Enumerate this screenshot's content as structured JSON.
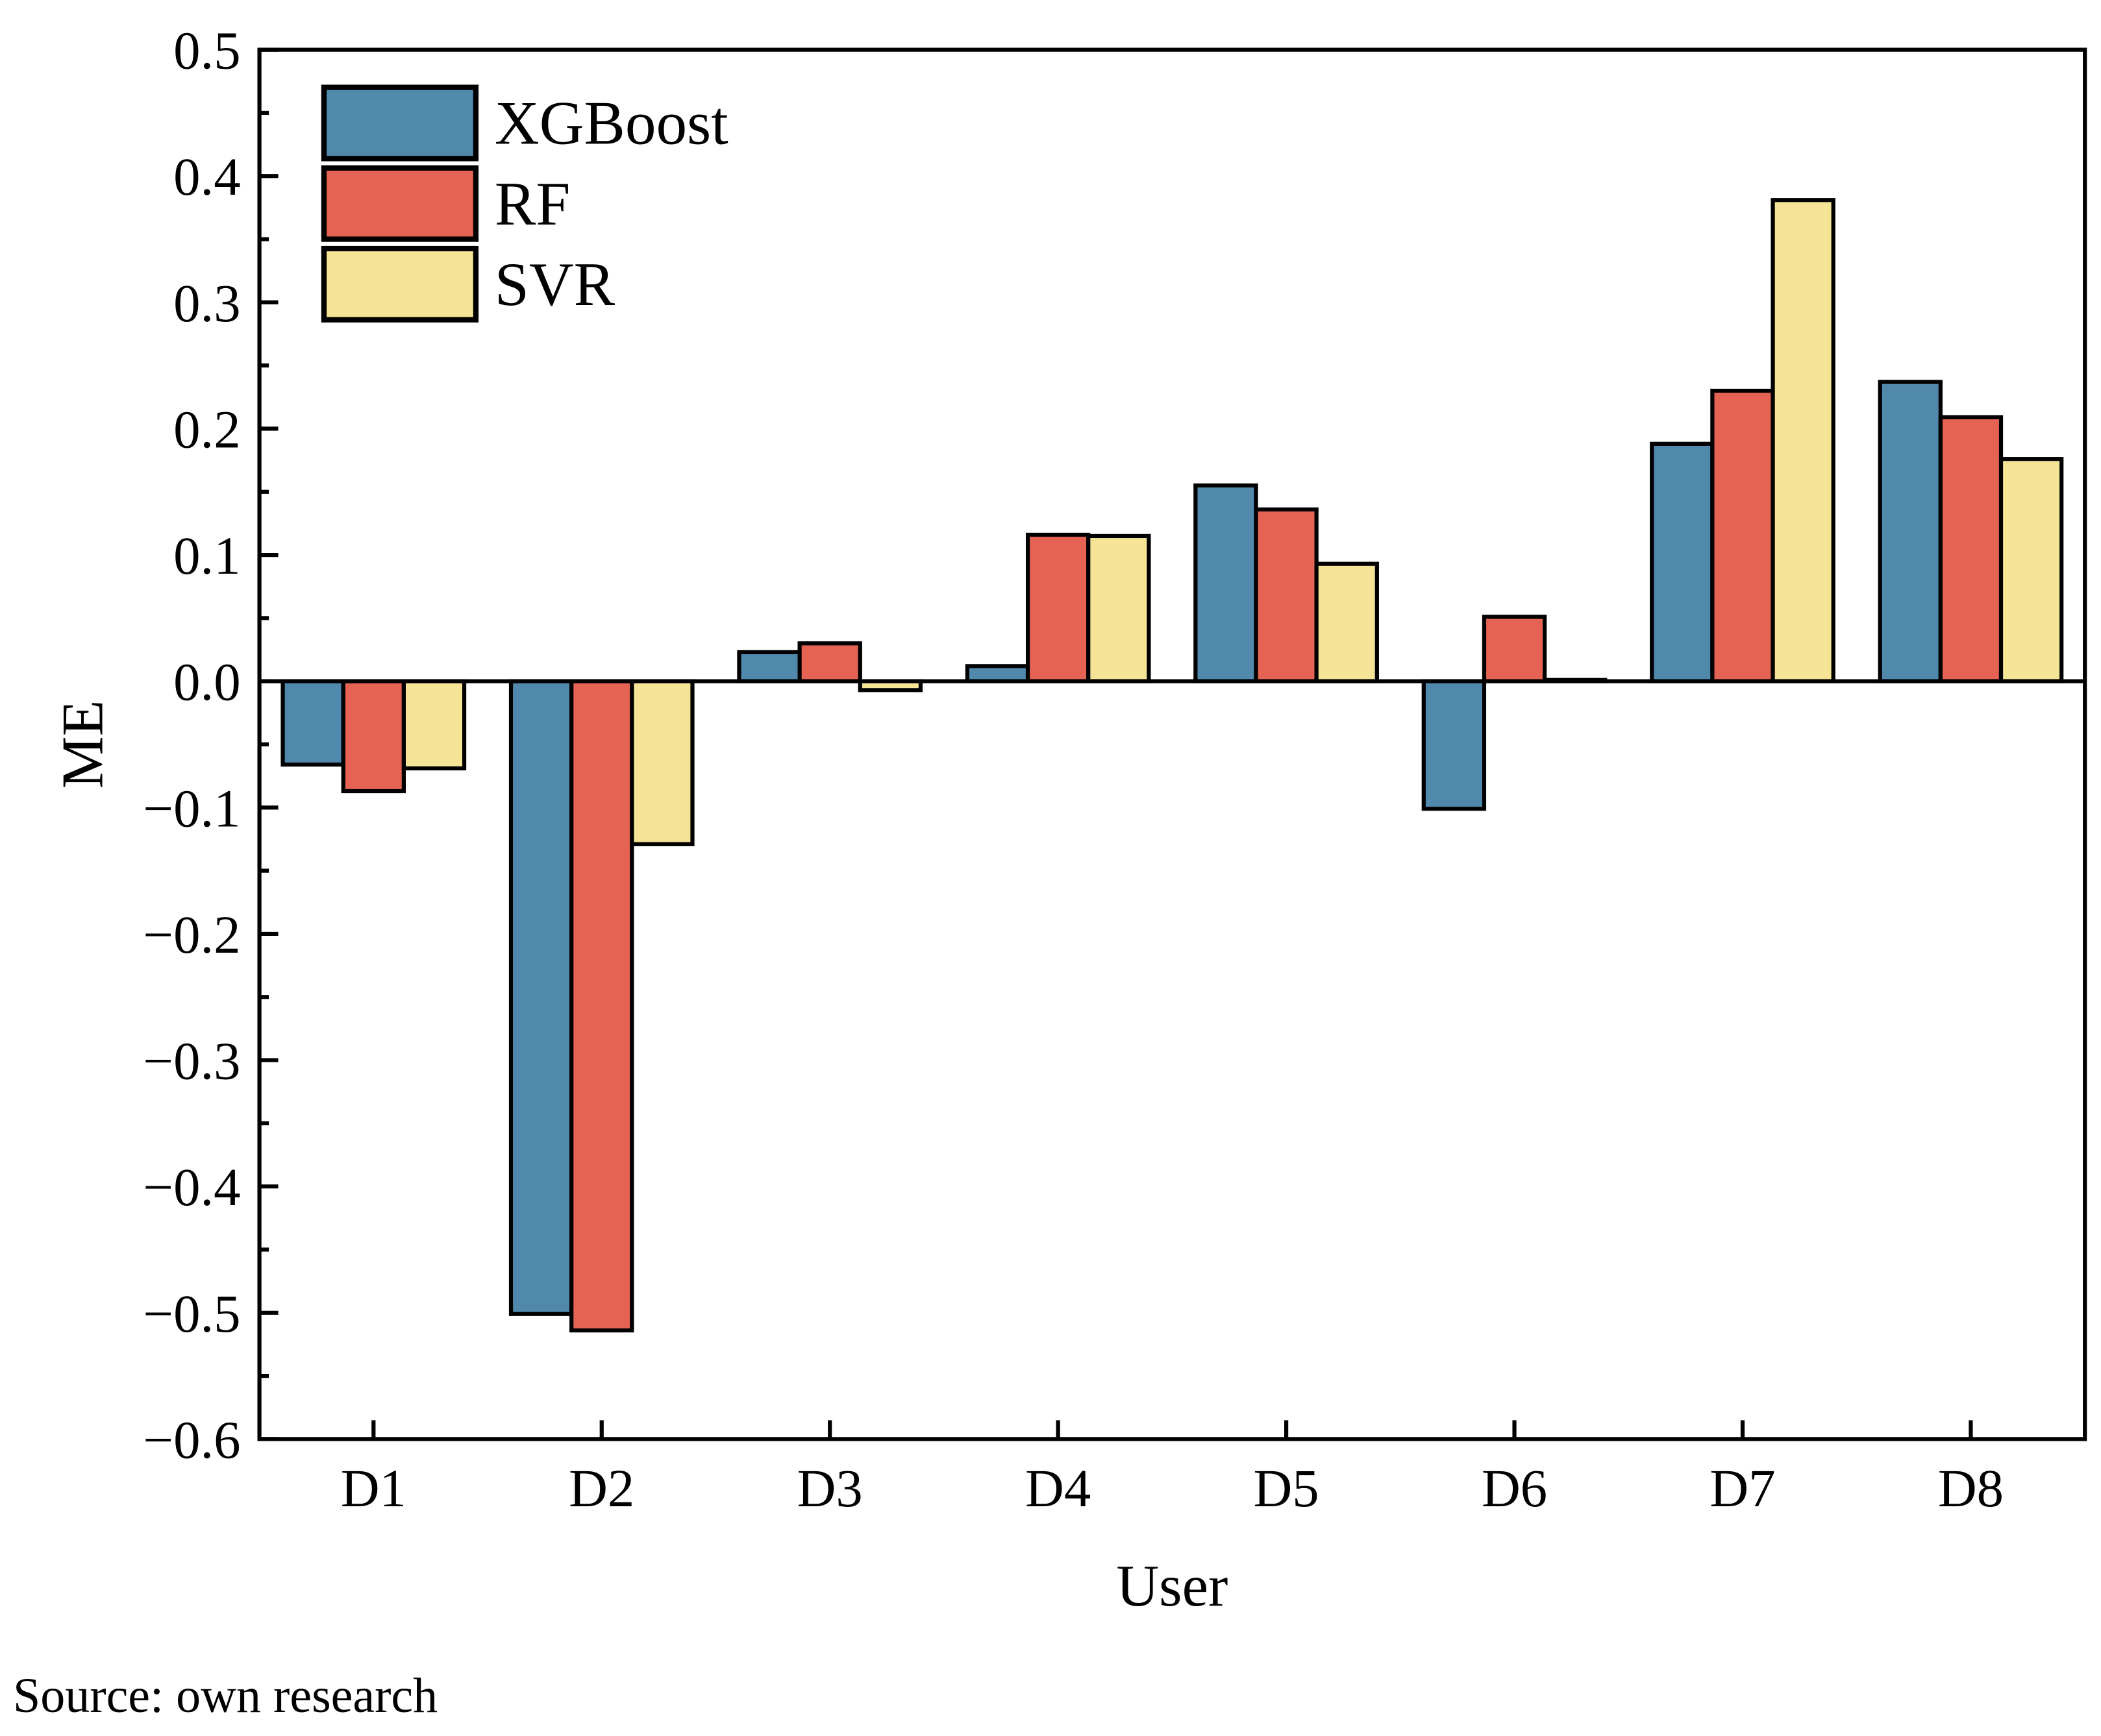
{
  "chart_data": {
    "type": "bar",
    "title": "",
    "xlabel": "User",
    "ylabel": "ME",
    "ylim": [
      -0.6,
      0.5
    ],
    "yticks": [
      -0.6,
      -0.5,
      -0.4,
      -0.3,
      -0.2,
      -0.1,
      0.0,
      0.1,
      0.2,
      0.3,
      0.4,
      0.5
    ],
    "ytick_labels": [
      "−0.6",
      "−0.5",
      "−0.4",
      "−0.3",
      "−0.2",
      "−0.1",
      "0.0",
      "0.1",
      "0.2",
      "0.3",
      "0.4",
      "0.5"
    ],
    "categories": [
      "D1",
      "D2",
      "D3",
      "D4",
      "D5",
      "D6",
      "D7",
      "D8"
    ],
    "legend_position": "top-left",
    "grid": false,
    "series": [
      {
        "name": "XGBoost",
        "color": "#5189ad",
        "values": [
          -0.066,
          -0.501,
          0.023,
          0.012,
          0.155,
          -0.101,
          0.188,
          0.237
        ]
      },
      {
        "name": "RF",
        "color": "#e56353",
        "values": [
          -0.087,
          -0.514,
          0.03,
          0.116,
          0.136,
          0.051,
          0.23,
          0.209
        ]
      },
      {
        "name": "SVR",
        "color": "#f5e495",
        "values": [
          -0.069,
          -0.129,
          -0.007,
          0.115,
          0.093,
          0.001,
          0.381,
          0.176
        ]
      }
    ]
  },
  "caption": "Source: own research"
}
